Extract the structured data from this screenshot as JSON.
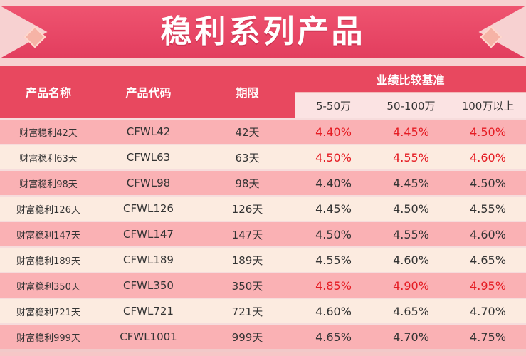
{
  "title": "稳利系列产品",
  "headers": {
    "name": "产品名称",
    "code": "产品代码",
    "term": "期限",
    "benchmark": "业绩比较基准",
    "tiers": [
      "5-50万",
      "50-100万",
      "100万以上"
    ]
  },
  "colors": {
    "highlight": "#e51c23",
    "header": "#e8485f"
  },
  "rows": [
    {
      "name": "财富稳利42天",
      "code": "CFWL42",
      "term": "42天",
      "rates": [
        "4.40%",
        "4.45%",
        "4.50%"
      ],
      "highlight": true
    },
    {
      "name": "财富稳利63天",
      "code": "CFWL63",
      "term": "63天",
      "rates": [
        "4.50%",
        "4.55%",
        "4.60%"
      ],
      "highlight": true
    },
    {
      "name": "财富稳利98天",
      "code": "CFWL98",
      "term": "98天",
      "rates": [
        "4.40%",
        "4.45%",
        "4.50%"
      ],
      "highlight": false
    },
    {
      "name": "财富稳利126天",
      "code": "CFWL126",
      "term": "126天",
      "rates": [
        "4.45%",
        "4.50%",
        "4.55%"
      ],
      "highlight": false
    },
    {
      "name": "财富稳利147天",
      "code": "CFWL147",
      "term": "147天",
      "rates": [
        "4.50%",
        "4.55%",
        "4.60%"
      ],
      "highlight": false
    },
    {
      "name": "财富稳利189天",
      "code": "CFWL189",
      "term": "189天",
      "rates": [
        "4.55%",
        "4.60%",
        "4.65%"
      ],
      "highlight": false
    },
    {
      "name": "财富稳利350天",
      "code": "CFWL350",
      "term": "350天",
      "rates": [
        "4.85%",
        "4.90%",
        "4.95%"
      ],
      "highlight": true
    },
    {
      "name": "财富稳利721天",
      "code": "CFWL721",
      "term": "721天",
      "rates": [
        "4.60%",
        "4.65%",
        "4.70%"
      ],
      "highlight": false
    },
    {
      "name": "财富稳利999天",
      "code": "CFWL1001",
      "term": "999天",
      "rates": [
        "4.65%",
        "4.70%",
        "4.75%"
      ],
      "highlight": false
    }
  ]
}
